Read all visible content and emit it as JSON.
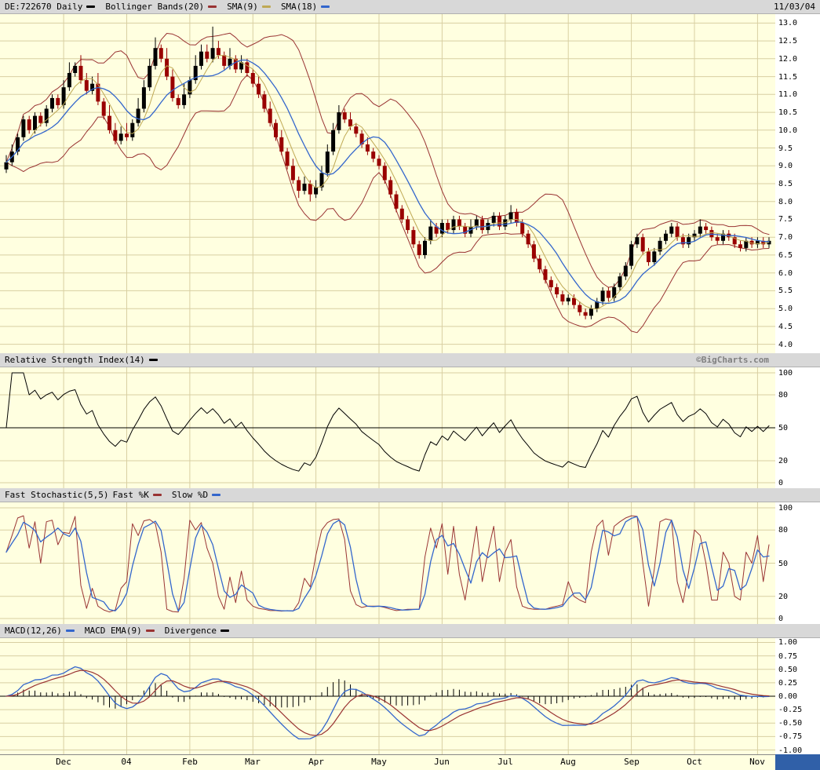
{
  "meta": {
    "date": "11/03/04",
    "watermark": "©BigCharts.com"
  },
  "colors": {
    "background": "#FFFFE0",
    "grid": "#D8CFA2",
    "strip_bg": "#D8D8D8",
    "candle_up": "#000000",
    "candle_down": "#990000",
    "bollinger": "#993333",
    "sma9": "#BFA954",
    "sma18": "#3366CC",
    "rsi": "#000000",
    "stoch_k": "#993333",
    "stoch_d": "#3366CC",
    "macd": "#3366CC",
    "macd_signal": "#993333",
    "divergence": "#000000",
    "watermark": "#808080",
    "corner_block": "#3060A8"
  },
  "headers": {
    "price": {
      "items": [
        {
          "label": "DE:722670 Daily",
          "swatch": "#000000"
        },
        {
          "label": "Bollinger Bands(20)",
          "swatch": "#993333"
        },
        {
          "label": "SMA(9)",
          "swatch": "#BFA954"
        },
        {
          "label": "SMA(18)",
          "swatch": "#3366CC"
        }
      ],
      "right": "11/03/04"
    },
    "rsi": {
      "items": [
        {
          "label": "Relative Strength Index(14)",
          "swatch": "#000000"
        }
      ],
      "right": "©BigCharts.com"
    },
    "stoch": {
      "items": [
        {
          "label": "Fast Stochastic(5,5)"
        },
        {
          "label": "Fast %K",
          "swatch": "#993333"
        },
        {
          "label": "Slow %D",
          "swatch": "#3366CC"
        }
      ]
    },
    "macd": {
      "items": [
        {
          "label": "MACD(12,26)",
          "swatch": "#3366CC"
        },
        {
          "label": "MACD EMA(9)",
          "swatch": "#993333"
        },
        {
          "label": "Divergence",
          "swatch": "#000000"
        }
      ]
    }
  },
  "chart_data": [
    {
      "type": "candlestick",
      "title": "DE:722670 Daily",
      "symbol": "DE:722670",
      "timeframe": "Daily",
      "ylim": [
        4.0,
        13.0
      ],
      "y_ticks": [
        "13.0",
        "12.5",
        "12.0",
        "11.5",
        "11.0",
        "10.5",
        "10.0",
        "9.5",
        "9.0",
        "8.5",
        "8.0",
        "7.5",
        "7.0",
        "6.5",
        "6.0",
        "5.5",
        "5.0",
        "4.5",
        "4.0"
      ],
      "x_ticks": [
        {
          "label": "Dec",
          "index": 10
        },
        {
          "label": "04",
          "index": 21
        },
        {
          "label": "Feb",
          "index": 32
        },
        {
          "label": "Mar",
          "index": 43
        },
        {
          "label": "Apr",
          "index": 54
        },
        {
          "label": "May",
          "index": 65
        },
        {
          "label": "Jun",
          "index": 76
        },
        {
          "label": "Jul",
          "index": 87
        },
        {
          "label": "Aug",
          "index": 98
        },
        {
          "label": "Sep",
          "index": 109
        },
        {
          "label": "Oct",
          "index": 120
        },
        {
          "label": "Nov",
          "index": 131
        }
      ],
      "overlays": [
        {
          "name": "Bollinger Bands(20)",
          "period": 20,
          "stddev": 2,
          "color": "#993333"
        },
        {
          "name": "SMA(9)",
          "period": 9,
          "color": "#BFA954"
        },
        {
          "name": "SMA(18)",
          "period": 18,
          "color": "#3366CC"
        }
      ],
      "columns": [
        "open",
        "high",
        "low",
        "close"
      ],
      "ohlc": [
        [
          8.9,
          9.3,
          8.8,
          9.1
        ],
        [
          9.1,
          9.6,
          9.0,
          9.4
        ],
        [
          9.4,
          9.9,
          9.3,
          9.8
        ],
        [
          9.8,
          10.4,
          9.7,
          10.3
        ],
        [
          10.3,
          10.4,
          9.9,
          10.0
        ],
        [
          10.0,
          10.5,
          9.9,
          10.4
        ],
        [
          10.4,
          10.5,
          10.1,
          10.2
        ],
        [
          10.2,
          10.7,
          10.1,
          10.6
        ],
        [
          10.6,
          11.0,
          10.5,
          10.9
        ],
        [
          10.9,
          11.0,
          10.6,
          10.7
        ],
        [
          10.7,
          11.4,
          10.6,
          11.2
        ],
        [
          11.2,
          11.9,
          11.1,
          11.6
        ],
        [
          11.6,
          11.9,
          11.5,
          11.8
        ],
        [
          11.8,
          12.1,
          11.3,
          11.4
        ],
        [
          11.4,
          11.6,
          11.0,
          11.1
        ],
        [
          11.1,
          11.5,
          11.0,
          11.3
        ],
        [
          11.3,
          11.6,
          10.7,
          10.8
        ],
        [
          10.8,
          10.9,
          10.3,
          10.4
        ],
        [
          10.4,
          10.7,
          9.9,
          10.0
        ],
        [
          10.0,
          10.2,
          9.6,
          9.7
        ],
        [
          9.7,
          10.1,
          9.6,
          9.9
        ],
        [
          9.9,
          10.2,
          9.7,
          9.8
        ],
        [
          9.8,
          10.3,
          9.7,
          10.2
        ],
        [
          10.2,
          10.9,
          10.1,
          10.6
        ],
        [
          10.6,
          11.4,
          10.5,
          11.2
        ],
        [
          11.2,
          12.0,
          11.1,
          11.8
        ],
        [
          11.8,
          12.6,
          11.7,
          12.3
        ],
        [
          12.3,
          12.4,
          11.9,
          12.0
        ],
        [
          12.0,
          12.3,
          11.4,
          11.5
        ],
        [
          11.5,
          11.7,
          10.8,
          10.9
        ],
        [
          10.9,
          11.0,
          10.6,
          10.7
        ],
        [
          10.7,
          11.3,
          10.6,
          11.0
        ],
        [
          11.0,
          11.5,
          10.9,
          11.4
        ],
        [
          11.4,
          12.1,
          11.3,
          11.8
        ],
        [
          11.8,
          12.4,
          11.7,
          12.2
        ],
        [
          12.2,
          12.4,
          11.9,
          12.0
        ],
        [
          12.0,
          12.9,
          11.9,
          12.3
        ],
        [
          12.3,
          12.5,
          12.0,
          12.1
        ],
        [
          12.1,
          12.2,
          11.7,
          11.8
        ],
        [
          11.8,
          12.3,
          11.7,
          12.0
        ],
        [
          12.0,
          12.1,
          11.6,
          11.7
        ],
        [
          11.7,
          12.1,
          11.6,
          11.9
        ],
        [
          11.9,
          12.0,
          11.5,
          11.6
        ],
        [
          11.6,
          11.7,
          11.2,
          11.3
        ],
        [
          11.3,
          11.5,
          10.9,
          11.0
        ],
        [
          11.0,
          11.1,
          10.5,
          10.6
        ],
        [
          10.6,
          10.8,
          10.1,
          10.2
        ],
        [
          10.2,
          10.3,
          9.7,
          9.8
        ],
        [
          9.8,
          10.0,
          9.3,
          9.4
        ],
        [
          9.4,
          9.5,
          8.9,
          9.0
        ],
        [
          9.0,
          9.2,
          8.5,
          8.6
        ],
        [
          8.6,
          8.7,
          8.1,
          8.3
        ],
        [
          8.3,
          8.7,
          8.2,
          8.5
        ],
        [
          8.5,
          8.6,
          8.0,
          8.2
        ],
        [
          8.2,
          8.6,
          8.1,
          8.4
        ],
        [
          8.4,
          9.0,
          8.3,
          8.8
        ],
        [
          8.8,
          9.6,
          8.7,
          9.4
        ],
        [
          9.4,
          10.2,
          9.3,
          10.0
        ],
        [
          10.0,
          10.7,
          9.9,
          10.5
        ],
        [
          10.5,
          10.6,
          10.2,
          10.3
        ],
        [
          10.3,
          10.5,
          10.0,
          10.1
        ],
        [
          10.1,
          10.2,
          9.8,
          9.9
        ],
        [
          9.9,
          10.0,
          9.5,
          9.6
        ],
        [
          9.6,
          9.8,
          9.3,
          9.4
        ],
        [
          9.4,
          9.5,
          9.1,
          9.2
        ],
        [
          9.2,
          9.3,
          8.9,
          9.0
        ],
        [
          9.0,
          9.1,
          8.5,
          8.6
        ],
        [
          8.6,
          8.7,
          8.1,
          8.2
        ],
        [
          8.2,
          8.3,
          7.7,
          7.8
        ],
        [
          7.8,
          7.9,
          7.4,
          7.5
        ],
        [
          7.5,
          7.6,
          7.1,
          7.2
        ],
        [
          7.2,
          7.3,
          6.7,
          6.8
        ],
        [
          6.8,
          6.9,
          6.4,
          6.5
        ],
        [
          6.5,
          7.0,
          6.4,
          6.9
        ],
        [
          6.9,
          7.5,
          6.8,
          7.3
        ],
        [
          7.3,
          7.4,
          7.0,
          7.1
        ],
        [
          7.1,
          7.5,
          7.0,
          7.4
        ],
        [
          7.4,
          7.5,
          7.1,
          7.2
        ],
        [
          7.2,
          7.6,
          7.1,
          7.5
        ],
        [
          7.5,
          7.6,
          7.2,
          7.3
        ],
        [
          7.3,
          7.4,
          7.0,
          7.1
        ],
        [
          7.1,
          7.5,
          7.0,
          7.3
        ],
        [
          7.3,
          7.6,
          7.2,
          7.5
        ],
        [
          7.5,
          7.6,
          7.1,
          7.2
        ],
        [
          7.2,
          7.5,
          7.1,
          7.4
        ],
        [
          7.4,
          7.7,
          7.3,
          7.6
        ],
        [
          7.6,
          7.7,
          7.2,
          7.3
        ],
        [
          7.3,
          7.6,
          7.2,
          7.5
        ],
        [
          7.5,
          7.9,
          7.4,
          7.7
        ],
        [
          7.7,
          7.8,
          7.3,
          7.4
        ],
        [
          7.4,
          7.5,
          7.0,
          7.1
        ],
        [
          7.1,
          7.2,
          6.7,
          6.8
        ],
        [
          6.8,
          6.9,
          6.3,
          6.4
        ],
        [
          6.4,
          6.5,
          6.0,
          6.1
        ],
        [
          6.1,
          6.2,
          5.7,
          5.8
        ],
        [
          5.8,
          5.9,
          5.5,
          5.6
        ],
        [
          5.6,
          5.7,
          5.3,
          5.4
        ],
        [
          5.4,
          5.5,
          5.1,
          5.2
        ],
        [
          5.2,
          5.4,
          5.1,
          5.3
        ],
        [
          5.3,
          5.4,
          5.0,
          5.1
        ],
        [
          5.1,
          5.2,
          4.8,
          4.9
        ],
        [
          4.9,
          5.0,
          4.7,
          4.8
        ],
        [
          4.8,
          5.1,
          4.7,
          5.0
        ],
        [
          5.0,
          5.3,
          4.9,
          5.2
        ],
        [
          5.2,
          5.6,
          5.1,
          5.5
        ],
        [
          5.5,
          5.6,
          5.2,
          5.3
        ],
        [
          5.3,
          5.7,
          5.2,
          5.6
        ],
        [
          5.6,
          6.0,
          5.5,
          5.9
        ],
        [
          5.9,
          6.3,
          5.8,
          6.2
        ],
        [
          6.2,
          6.9,
          6.1,
          6.8
        ],
        [
          6.8,
          7.1,
          6.7,
          7.0
        ],
        [
          7.0,
          7.1,
          6.5,
          6.6
        ],
        [
          6.6,
          6.7,
          6.2,
          6.3
        ],
        [
          6.3,
          6.7,
          6.2,
          6.6
        ],
        [
          6.6,
          7.0,
          6.5,
          6.9
        ],
        [
          6.9,
          7.2,
          6.8,
          7.1
        ],
        [
          7.1,
          7.4,
          7.0,
          7.3
        ],
        [
          7.3,
          7.4,
          6.9,
          7.0
        ],
        [
          7.0,
          7.1,
          6.7,
          6.8
        ],
        [
          6.8,
          7.1,
          6.7,
          7.0
        ],
        [
          7.0,
          7.2,
          6.9,
          7.1
        ],
        [
          7.1,
          7.5,
          7.0,
          7.3
        ],
        [
          7.3,
          7.4,
          7.1,
          7.2
        ],
        [
          7.2,
          7.3,
          6.9,
          7.0
        ],
        [
          7.0,
          7.1,
          6.8,
          6.9
        ],
        [
          6.9,
          7.2,
          6.8,
          7.1
        ],
        [
          7.1,
          7.2,
          6.9,
          7.0
        ],
        [
          7.0,
          7.1,
          6.7,
          6.8
        ],
        [
          6.8,
          6.9,
          6.6,
          6.7
        ],
        [
          6.7,
          7.0,
          6.6,
          6.9
        ],
        [
          6.9,
          7.0,
          6.7,
          6.8
        ],
        [
          6.8,
          7.0,
          6.7,
          6.9
        ],
        [
          6.9,
          7.0,
          6.7,
          6.8
        ],
        [
          6.8,
          7.0,
          6.7,
          6.9
        ]
      ]
    },
    {
      "type": "line",
      "title": "Relative Strength Index(14)",
      "period": 14,
      "derived": true,
      "ylim": [
        0,
        100
      ],
      "midline": 50,
      "y_ticks": [
        "100",
        "80",
        "50",
        "20",
        "0"
      ],
      "series": [
        {
          "name": "RSI(14)",
          "color": "#000000"
        }
      ]
    },
    {
      "type": "line",
      "title": "Fast Stochastic(5,5)",
      "k_period": 5,
      "d_period": 5,
      "derived": true,
      "ylim": [
        0,
        100
      ],
      "y_ticks": [
        "100",
        "80",
        "50",
        "20",
        "0"
      ],
      "series": [
        {
          "name": "Fast %K",
          "color": "#993333"
        },
        {
          "name": "Slow %D",
          "color": "#3366CC"
        }
      ]
    },
    {
      "type": "line+bar",
      "title": "MACD(12,26)",
      "fast_period": 12,
      "slow_period": 26,
      "signal_period": 9,
      "derived": true,
      "ylim": [
        -1.0,
        1.0
      ],
      "midline": 0,
      "y_ticks": [
        "1.00",
        "0.75",
        "0.50",
        "0.25",
        "0.00",
        "-0.25",
        "-0.50",
        "-0.75",
        "-1.00"
      ],
      "series": [
        {
          "name": "MACD(12,26)",
          "color": "#3366CC"
        },
        {
          "name": "MACD EMA(9)",
          "color": "#993333"
        },
        {
          "name": "Divergence",
          "color": "#000000"
        }
      ]
    }
  ]
}
